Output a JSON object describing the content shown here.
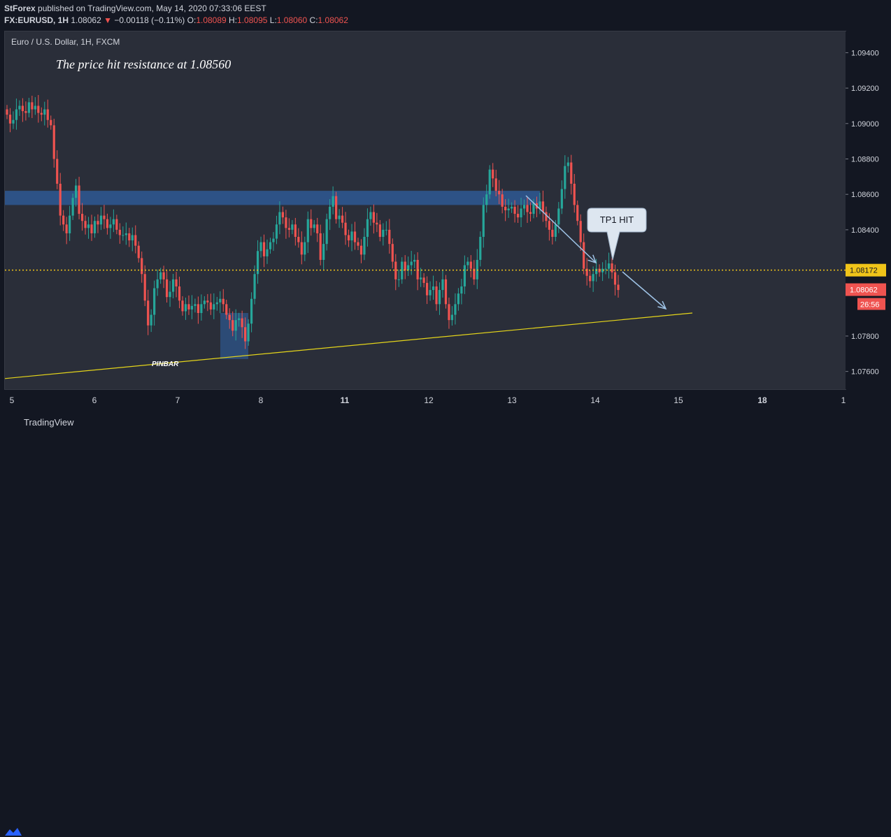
{
  "header": {
    "publisher": "StForex",
    "published_text": "published on TradingView.com, May 14, 2020 07:33:06 EEST",
    "symbol": "FX:EURUSD, 1H",
    "last": "1.08062",
    "change_arrow": "▼",
    "change": "−0.00118 (−0.11%)",
    "o_label": "O:",
    "o_value": "1.08089",
    "h_label": "H:",
    "h_value": "1.08095",
    "l_label": "L:",
    "l_value": "1.08060",
    "c_label": "C:",
    "c_value": "1.08062"
  },
  "footer": {
    "brand": "TradingView"
  },
  "colors": {
    "background": "#131722",
    "pane": "#2a2e39",
    "up": "#26a69a",
    "down": "#ef5350",
    "support": "#e5d51a",
    "zone": "#2f5fa0",
    "price_line": "#f0c419"
  },
  "chart_data": {
    "type": "candlestick",
    "symbol_title": "Euro / U.S. Dollar, 1H, FXCM",
    "annotation_text": "The price hit resistance at 1.08560",
    "callout_text": "TP1 HIT",
    "pinbar_text": "PINBAR",
    "ylim": [
      1.075,
      1.0952
    ],
    "y_ticks": [
      "1.09400",
      "1.09200",
      "1.09000",
      "1.08800",
      "1.08600",
      "1.08400",
      "1.07800",
      "1.07600"
    ],
    "x_ticks": [
      "5",
      "6",
      "7",
      "8",
      "11",
      "12",
      "13",
      "14",
      "15",
      "18",
      "1"
    ],
    "price_line_value": 1.08172,
    "price_line_label": "1.08172",
    "last_price_label": "1.08062",
    "countdown_label": "26:56",
    "resistance_zone": [
      1.0854,
      1.0862
    ],
    "pinbar_zone": [
      1.0767,
      1.0793
    ],
    "support_line": {
      "from": 1.0756,
      "to": 1.0793
    },
    "candles_close": [
      1.0905,
      1.09,
      1.0902,
      1.0908,
      1.091,
      1.0907,
      1.0906,
      1.0912,
      1.0908,
      1.091,
      1.0906,
      1.0905,
      1.0908,
      1.0902,
      1.0899,
      1.088,
      1.0866,
      1.0848,
      1.0843,
      1.0838,
      1.0848,
      1.0858,
      1.0865,
      1.0849,
      1.0845,
      1.0841,
      1.0843,
      1.0838,
      1.0845,
      1.0843,
      1.0848,
      1.0846,
      1.0841,
      1.0843,
      1.0846,
      1.084,
      1.0837,
      1.0837,
      1.0838,
      1.0834,
      1.0837,
      1.0831,
      1.0824,
      1.0815,
      1.08,
      1.0786,
      1.0792,
      1.0807,
      1.0812,
      1.0816,
      1.0812,
      1.0802,
      1.0805,
      1.0812,
      1.0808,
      1.08,
      1.0794,
      1.0798,
      1.0795,
      1.0797,
      1.0798,
      1.0793,
      1.0798,
      1.08,
      1.0799,
      1.0795,
      1.0798,
      1.0799,
      1.0801,
      1.0798,
      1.0792,
      1.0789,
      1.0783,
      1.0789,
      1.079,
      1.0785,
      1.0777,
      1.0787,
      1.0801,
      1.0815,
      1.0828,
      1.0833,
      1.0825,
      1.0829,
      1.0833,
      1.0835,
      1.0843,
      1.085,
      1.0847,
      1.0841,
      1.084,
      1.0843,
      1.0836,
      1.0833,
      1.0826,
      1.0833,
      1.0846,
      1.0841,
      1.0843,
      1.0838,
      1.0823,
      1.0832,
      1.0846,
      1.0853,
      1.0859,
      1.0846,
      1.0848,
      1.0844,
      1.0837,
      1.0834,
      1.0839,
      1.0833,
      1.0831,
      1.0826,
      1.0836,
      1.0846,
      1.085,
      1.0844,
      1.0843,
      1.0836,
      1.084,
      1.084,
      1.0832,
      1.0822,
      1.0812,
      1.0812,
      1.0822,
      1.0817,
      1.082,
      1.0822,
      1.0823,
      1.0812,
      1.0813,
      1.081,
      1.0803,
      1.0806,
      1.0808,
      1.0798,
      1.0806,
      1.0812,
      1.0798,
      1.0789,
      1.0792,
      1.0798,
      1.0804,
      1.0808,
      1.082,
      1.0822,
      1.0818,
      1.0812,
      1.0823,
      1.0836,
      1.0854,
      1.086,
      1.0874,
      1.0869,
      1.0862,
      1.086,
      1.0853,
      1.0851,
      1.0852,
      1.0853,
      1.0849,
      1.0847,
      1.0852,
      1.0854,
      1.085,
      1.0849,
      1.0855,
      1.0852,
      1.0856,
      1.085,
      1.0845,
      1.084,
      1.0836,
      1.0843,
      1.0852,
      1.0863,
      1.0876,
      1.0878,
      1.0866,
      1.0854,
      1.0845,
      1.0833,
      1.0818,
      1.0814,
      1.0811,
      1.0815,
      1.0818,
      1.0816,
      1.0818,
      1.0818,
      1.0821,
      1.0816,
      1.0809,
      1.0806
    ]
  }
}
